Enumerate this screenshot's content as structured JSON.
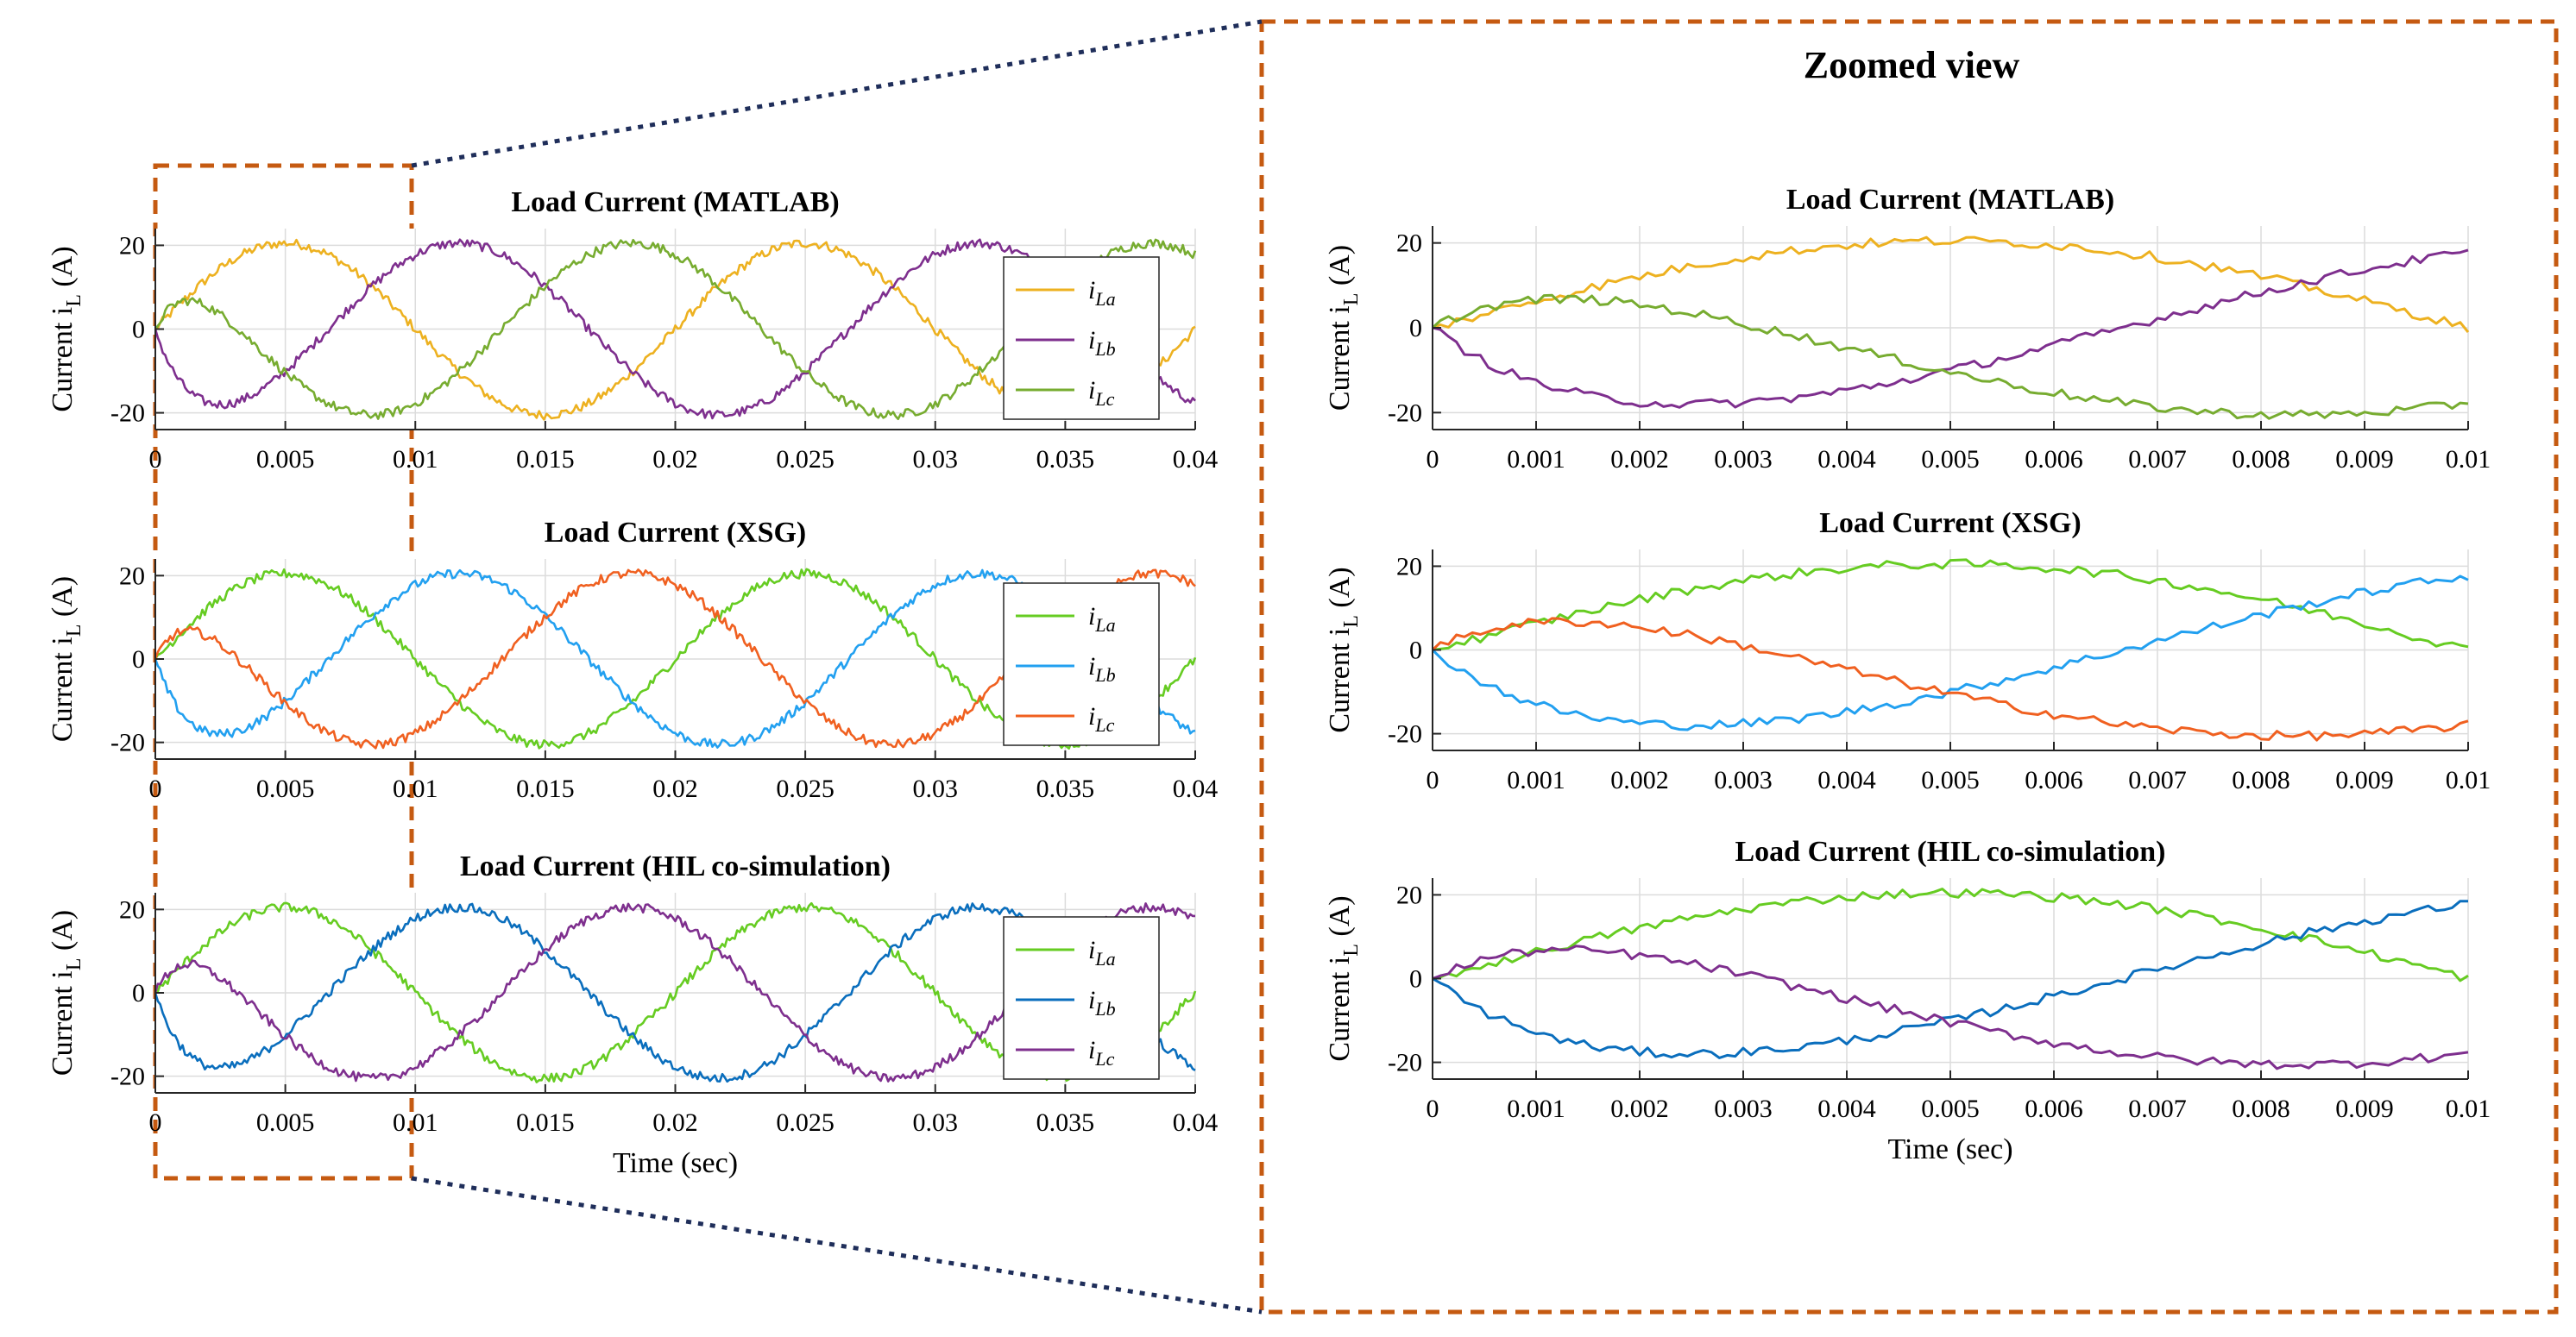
{
  "figure": {
    "zoom_title": "Zoomed view",
    "colors": {
      "zoom_box": "#C55A11",
      "connector": "#1F2E5A",
      "grid": "#DCDCDC",
      "axis": "#262626"
    }
  },
  "chart_data": [
    {
      "id": "left-matlab",
      "type": "line",
      "title": "Load Current (MATLAB)",
      "ylabel_main": "Current i",
      "ylabel_sub": "L",
      "ylabel_unit": " (A)",
      "xlabel": "",
      "xlim": [
        0,
        0.04
      ],
      "ylim": [
        -24,
        24
      ],
      "xticks": [
        0,
        0.005,
        0.01,
        0.015,
        0.02,
        0.025,
        0.03,
        0.035,
        0.04
      ],
      "xtick_labels": [
        "0",
        "0.005",
        "0.01",
        "0.015",
        "0.02",
        "0.025",
        "0.03",
        "0.035",
        "0.04"
      ],
      "yticks": [
        -20,
        0,
        20
      ],
      "ytick_labels": [
        "-20",
        "0",
        "20"
      ],
      "grid": true,
      "legend_position": "right",
      "series": [
        {
          "name": "i",
          "sub": "La",
          "color": "#EDB120",
          "kind": "a"
        },
        {
          "name": "i",
          "sub": "Lb",
          "color": "#7E2F8E",
          "kind": "b"
        },
        {
          "name": "i",
          "sub": "Lc",
          "color": "#77AC30",
          "kind": "c"
        }
      ]
    },
    {
      "id": "left-xsg",
      "type": "line",
      "title": "Load Current (XSG)",
      "ylabel_main": "Current i",
      "ylabel_sub": "L",
      "ylabel_unit": " (A)",
      "xlabel": "",
      "xlim": [
        0,
        0.04
      ],
      "ylim": [
        -24,
        24
      ],
      "xticks": [
        0,
        0.005,
        0.01,
        0.015,
        0.02,
        0.025,
        0.03,
        0.035,
        0.04
      ],
      "xtick_labels": [
        "0",
        "0.005",
        "0.01",
        "0.015",
        "0.02",
        "0.025",
        "0.03",
        "0.035",
        "0.04"
      ],
      "yticks": [
        -20,
        0,
        20
      ],
      "ytick_labels": [
        "-20",
        "0",
        "20"
      ],
      "grid": true,
      "legend_position": "right",
      "series": [
        {
          "name": "i",
          "sub": "La",
          "color": "#66CC22",
          "kind": "a"
        },
        {
          "name": "i",
          "sub": "Lb",
          "color": "#22A0F0",
          "kind": "b"
        },
        {
          "name": "i",
          "sub": "Lc",
          "color": "#F06020",
          "kind": "c"
        }
      ]
    },
    {
      "id": "left-hil",
      "type": "line",
      "title": "Load Current (HIL co-simulation)",
      "ylabel_main": "Current i",
      "ylabel_sub": "L",
      "ylabel_unit": " (A)",
      "xlabel": "Time (sec)",
      "xlim": [
        0,
        0.04
      ],
      "ylim": [
        -24,
        24
      ],
      "xticks": [
        0,
        0.005,
        0.01,
        0.015,
        0.02,
        0.025,
        0.03,
        0.035,
        0.04
      ],
      "xtick_labels": [
        "0",
        "0.005",
        "0.01",
        "0.015",
        "0.02",
        "0.025",
        "0.03",
        "0.035",
        "0.04"
      ],
      "yticks": [
        -20,
        0,
        20
      ],
      "ytick_labels": [
        "-20",
        "0",
        "20"
      ],
      "grid": true,
      "legend_position": "right",
      "series": [
        {
          "name": "i",
          "sub": "La",
          "color": "#66CC22",
          "kind": "a"
        },
        {
          "name": "i",
          "sub": "Lb",
          "color": "#0A6EBD",
          "kind": "b"
        },
        {
          "name": "i",
          "sub": "Lc",
          "color": "#7E2F8E",
          "kind": "c"
        }
      ]
    },
    {
      "id": "zoom-matlab",
      "type": "line",
      "title": "Load Current (MATLAB)",
      "ylabel_main": "Current i",
      "ylabel_sub": "L",
      "ylabel_unit": " (A)",
      "xlabel": "",
      "xlim": [
        0,
        0.01
      ],
      "ylim": [
        -24,
        24
      ],
      "xticks": [
        0,
        0.001,
        0.002,
        0.003,
        0.004,
        0.005,
        0.006,
        0.007,
        0.008,
        0.009,
        0.01
      ],
      "xtick_labels": [
        "0",
        "0.001",
        "0.002",
        "0.003",
        "0.004",
        "0.005",
        "0.006",
        "0.007",
        "0.008",
        "0.009",
        "0.01"
      ],
      "yticks": [
        -20,
        0,
        20
      ],
      "ytick_labels": [
        "-20",
        "0",
        "20"
      ],
      "grid": true,
      "legend_position": "none",
      "series": [
        {
          "color": "#EDB120",
          "kind": "a"
        },
        {
          "color": "#7E2F8E",
          "kind": "b"
        },
        {
          "color": "#77AC30",
          "kind": "c"
        }
      ]
    },
    {
      "id": "zoom-xsg",
      "type": "line",
      "title": "Load Current (XSG)",
      "ylabel_main": "Current i",
      "ylabel_sub": "L",
      "ylabel_unit": " (A)",
      "xlabel": "",
      "xlim": [
        0,
        0.01
      ],
      "ylim": [
        -24,
        24
      ],
      "xticks": [
        0,
        0.001,
        0.002,
        0.003,
        0.004,
        0.005,
        0.006,
        0.007,
        0.008,
        0.009,
        0.01
      ],
      "xtick_labels": [
        "0",
        "0.001",
        "0.002",
        "0.003",
        "0.004",
        "0.005",
        "0.006",
        "0.007",
        "0.008",
        "0.009",
        "0.01"
      ],
      "yticks": [
        -20,
        0,
        20
      ],
      "ytick_labels": [
        "-20",
        "0",
        "20"
      ],
      "grid": true,
      "legend_position": "none",
      "series": [
        {
          "color": "#66CC22",
          "kind": "a"
        },
        {
          "color": "#22A0F0",
          "kind": "b"
        },
        {
          "color": "#F06020",
          "kind": "c"
        }
      ]
    },
    {
      "id": "zoom-hil",
      "type": "line",
      "title": "Load Current (HIL co-simulation)",
      "ylabel_main": "Current i",
      "ylabel_sub": "L",
      "ylabel_unit": " (A)",
      "xlabel": "Time (sec)",
      "xlim": [
        0,
        0.01
      ],
      "ylim": [
        -24,
        24
      ],
      "xticks": [
        0,
        0.001,
        0.002,
        0.003,
        0.004,
        0.005,
        0.006,
        0.007,
        0.008,
        0.009,
        0.01
      ],
      "xtick_labels": [
        "0",
        "0.001",
        "0.002",
        "0.003",
        "0.004",
        "0.005",
        "0.006",
        "0.007",
        "0.008",
        "0.009",
        "0.01"
      ],
      "yticks": [
        -20,
        0,
        20
      ],
      "ytick_labels": [
        "-20",
        "0",
        "20"
      ],
      "grid": true,
      "legend_position": "none",
      "series": [
        {
          "color": "#66CC22",
          "kind": "a"
        },
        {
          "color": "#0A6EBD",
          "kind": "b"
        },
        {
          "color": "#7E2F8E",
          "kind": "c"
        }
      ]
    }
  ]
}
